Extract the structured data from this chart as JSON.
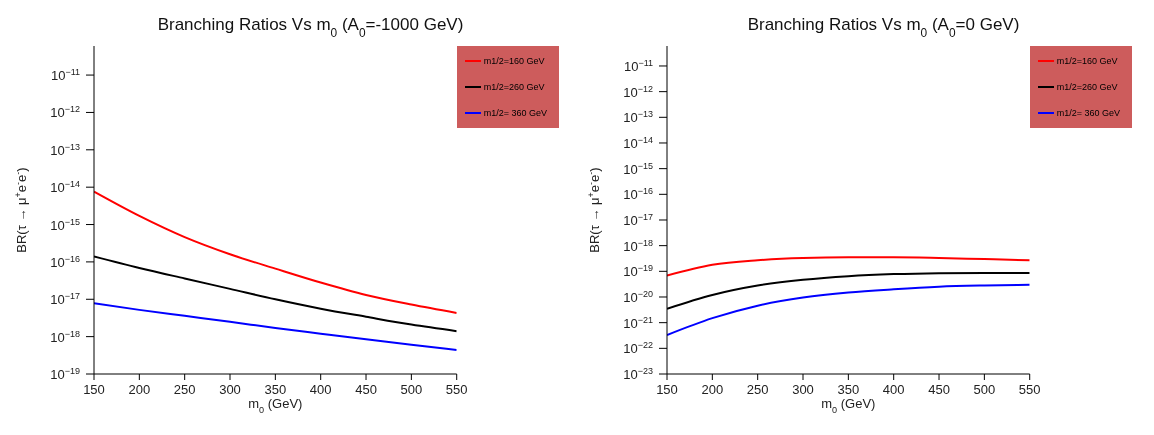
{
  "chart_data": [
    {
      "type": "line",
      "title": "Branching Ratios Vs m$_{0}$ (A$_{0}$=-1000 GeV)",
      "xlabel": "m$_{0}$ (GeV)",
      "ylabel": "BR(τ → μ$^{+}$e$^{-}$e$^{-}$)",
      "x": [
        150,
        200,
        250,
        300,
        350,
        400,
        450,
        500,
        550
      ],
      "series": [
        {
          "name": "m1/2=160 GeV",
          "color": "#ff0000",
          "values": [
            7.6e-15,
            1.7e-15,
            4.6e-16,
            1.6e-16,
            6.6e-17,
            2.8e-17,
            1.3e-17,
            7.2e-18,
            4.3e-18
          ]
        },
        {
          "name": "m1/2=260 GeV",
          "color": "#000000",
          "values": [
            1.4e-16,
            6.9e-17,
            3.6e-17,
            1.9e-17,
            1e-17,
            5.6e-18,
            3.4e-18,
            2.1e-18,
            1.4e-18
          ]
        },
        {
          "name": "m1/2= 360 GeV",
          "color": "#0000ff",
          "values": [
            7.8e-18,
            5.2e-18,
            3.6e-18,
            2.5e-18,
            1.7e-18,
            1.2e-18,
            8.5e-19,
            6.1e-19,
            4.4e-19
          ]
        }
      ],
      "xlim": [
        150,
        550
      ],
      "xticks": [
        150,
        200,
        250,
        300,
        350,
        400,
        450,
        500,
        550
      ],
      "ylim": [
        1e-19,
        6e-11
      ],
      "yticks": [
        {
          "value": 1e-19,
          "label": "10$^{−19}$"
        },
        {
          "value": 1e-18,
          "label": "10$^{−18}$"
        },
        {
          "value": 1e-17,
          "label": "10$^{−17}$"
        },
        {
          "value": 1e-16,
          "label": "10$^{−16}$"
        },
        {
          "value": 1e-15,
          "label": "10$^{−15}$"
        },
        {
          "value": 1e-14,
          "label": "10$^{−14}$"
        },
        {
          "value": 1e-13,
          "label": "10$^{−13}$"
        },
        {
          "value": 1e-12,
          "label": "10$^{−12}$"
        },
        {
          "value": 1e-11,
          "label": "10$^{−11}$"
        }
      ],
      "log": "y",
      "grid": false,
      "legend": "top right",
      "marker": "none",
      "line_style": "solid"
    },
    {
      "type": "line",
      "title": "Branching Ratios Vs m$_{0}$ (A$_{0}$=0 GeV)",
      "xlabel": "m$_{0}$ (GeV)",
      "ylabel": "BR(τ → μ$^{+}$e$^{-}$e$^{-}$)",
      "x": [
        150,
        200,
        250,
        300,
        350,
        400,
        450,
        500,
        550
      ],
      "series": [
        {
          "name": "m1/2=160 GeV",
          "color": "#ff0000",
          "values": [
            6.8e-20,
            1.8e-19,
            2.7e-19,
            3.3e-19,
            3.5e-19,
            3.5e-19,
            3.3e-19,
            3e-19,
            2.7e-19
          ]
        },
        {
          "name": "m1/2=260 GeV",
          "color": "#000000",
          "values": [
            3.5e-21,
            1.2e-20,
            2.8e-20,
            4.7e-20,
            6.5e-20,
            7.8e-20,
            8.5e-20,
            8.7e-20,
            8.7e-20
          ]
        },
        {
          "name": "m1/2= 360 GeV",
          "color": "#0000ff",
          "values": [
            3.3e-22,
            1.5e-21,
            4.6e-21,
            9.5e-21,
            1.5e-20,
            2e-20,
            2.5e-20,
            2.8e-20,
            3e-20
          ]
        }
      ],
      "xlim": [
        150,
        550
      ],
      "xticks": [
        150,
        200,
        250,
        300,
        350,
        400,
        450,
        500,
        550
      ],
      "ylim": [
        1e-23,
        6e-11
      ],
      "yticks": [
        {
          "value": 1e-23,
          "label": "10$^{−23}$"
        },
        {
          "value": 1e-22,
          "label": "10$^{−22}$"
        },
        {
          "value": 1e-21,
          "label": "10$^{−21}$"
        },
        {
          "value": 1e-20,
          "label": "10$^{−20}$"
        },
        {
          "value": 1e-19,
          "label": "10$^{−19}$"
        },
        {
          "value": 1e-18,
          "label": "10$^{−18}$"
        },
        {
          "value": 1e-17,
          "label": "10$^{−17}$"
        },
        {
          "value": 1e-16,
          "label": "10$^{−16}$"
        },
        {
          "value": 1e-15,
          "label": "10$^{−15}$"
        },
        {
          "value": 1e-14,
          "label": "10$^{−14}$"
        },
        {
          "value": 1e-13,
          "label": "10$^{−13}$"
        },
        {
          "value": 1e-12,
          "label": "10$^{−12}$"
        },
        {
          "value": 1e-11,
          "label": "10$^{−11}$"
        }
      ],
      "log": "y",
      "grid": false,
      "legend": "top right",
      "marker": "none",
      "line_style": "solid"
    }
  ]
}
